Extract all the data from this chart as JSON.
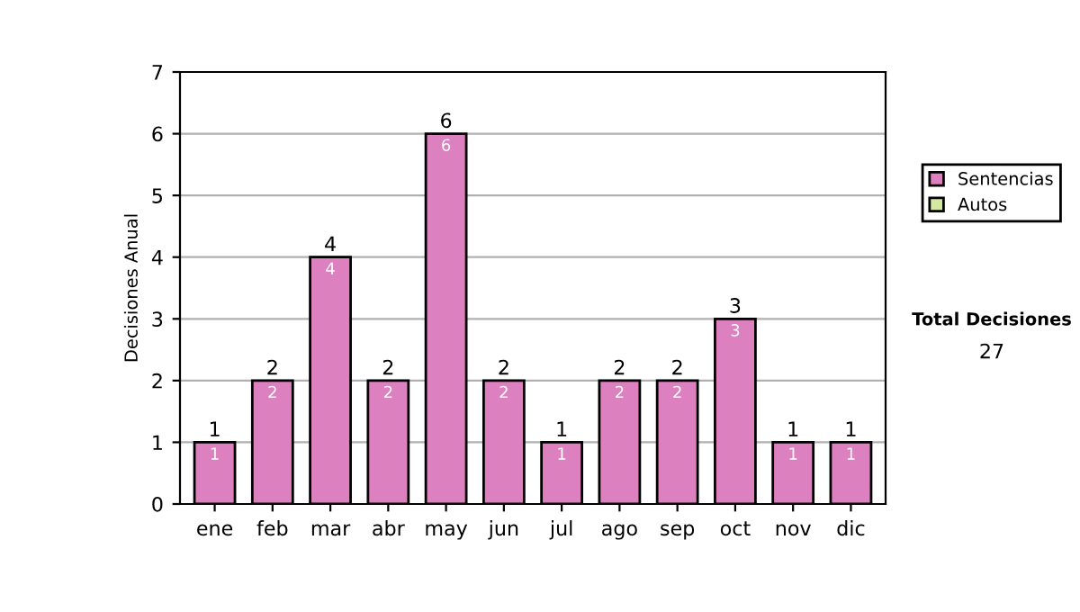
{
  "chart_data": {
    "type": "bar",
    "stacked": true,
    "ylabel": "Decisiones Anual",
    "categories": [
      "ene",
      "feb",
      "mar",
      "abr",
      "may",
      "jun",
      "jul",
      "ago",
      "sep",
      "oct",
      "nov",
      "dic"
    ],
    "series": [
      {
        "name": "Sentencias",
        "color": "#dd80c0",
        "values": [
          1,
          2,
          4,
          2,
          6,
          2,
          1,
          2,
          2,
          3,
          1,
          1
        ],
        "value_labels": [
          "1",
          "2",
          "4",
          "2",
          "6",
          "2",
          "1",
          "2",
          "2",
          "3",
          "1",
          "1"
        ]
      },
      {
        "name": "Autos",
        "color": "#d4e8a0",
        "values": [
          null,
          null,
          null,
          null,
          null,
          null,
          null,
          null,
          null,
          null,
          null,
          null
        ]
      }
    ],
    "totals": [
      "1",
      "2",
      "4",
      "2",
      "6",
      "2",
      "1",
      "2",
      "2",
      "3",
      "1",
      "1"
    ],
    "ylim": [
      0,
      7
    ],
    "yticks": [
      0,
      1,
      2,
      3,
      4,
      5,
      6,
      7
    ],
    "grid": "y",
    "legend": "right",
    "annotations": [
      "Total Decisiones",
      "27"
    ]
  }
}
